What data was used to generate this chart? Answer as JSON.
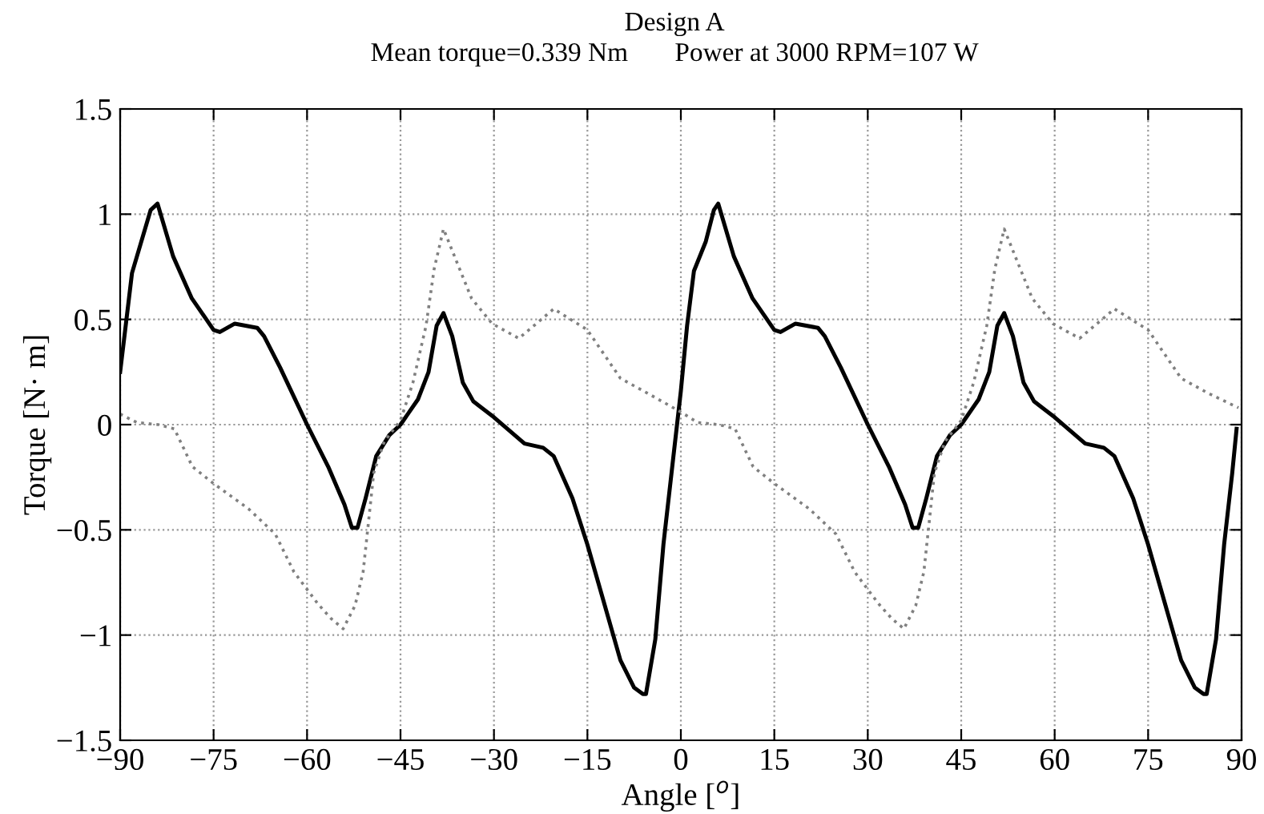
{
  "chart_data": {
    "type": "line",
    "title": "Design A",
    "subtitle": "Mean torque=0.339 Nm       Power at 3000 RPM=107 W",
    "xlabel": "Angle [$^{o}$]",
    "ylabel": "Torque [N· m]",
    "xlim": [
      -90,
      90
    ],
    "xticks": [
      {
        "value": -90,
        "label": "−90"
      },
      {
        "value": -75,
        "label": "−75"
      },
      {
        "value": -60,
        "label": "−60"
      },
      {
        "value": -45,
        "label": "−45"
      },
      {
        "value": -30,
        "label": "−30"
      },
      {
        "value": -15,
        "label": "−15"
      },
      0,
      15,
      30,
      45,
      60,
      75,
      90
    ],
    "ylim": [
      -1.5,
      1.5
    ],
    "yticks": [
      {
        "value": -1.5,
        "label": "−1.5"
      },
      {
        "value": -1,
        "label": "−1"
      },
      {
        "value": -0.5,
        "label": "−0.5"
      },
      0,
      0.5,
      1,
      1.5
    ],
    "grid": true,
    "marker": "none",
    "series": [
      {
        "color": "#000000",
        "line_style": "solid",
        "x": [
          -90,
          -88.1,
          -85.1,
          -84,
          -81.5,
          -78.5,
          -75,
          -74,
          -71.6,
          -68,
          -66.9,
          -64.3,
          -60,
          -56.6,
          -54,
          -52.8,
          -51.9,
          -50.6,
          -48.9,
          -46.8,
          -45,
          -42.2,
          -40.5,
          -39.2,
          -38.1,
          -36.7,
          -35,
          -33.3,
          -30,
          -25.1,
          -22.1,
          -20.4,
          -17.4,
          -15,
          -12.3,
          -9.7,
          -7.5,
          -6.1,
          -5.6,
          -4.1,
          -2.8,
          -1.5,
          0,
          1,
          2.1,
          4,
          5.3,
          6,
          8.5,
          11.5,
          15,
          16,
          18.4,
          22,
          23.1,
          25.7,
          30,
          33.4,
          36,
          37.2,
          38.1,
          39.4,
          41.1,
          43.2,
          45,
          47.8,
          49.5,
          50.8,
          51.9,
          53.3,
          55,
          56.7,
          60,
          64.9,
          67.9,
          69.6,
          72.6,
          75,
          77.7,
          80.3,
          82.5,
          83.9,
          84.4,
          85.9,
          87.2,
          88.5,
          89.2
        ],
        "values": [
          0.25,
          0.72,
          1.02,
          1.05,
          0.8,
          0.6,
          0.45,
          0.44,
          0.48,
          0.46,
          0.42,
          0.27,
          0,
          -0.2,
          -0.38,
          -0.49,
          -0.49,
          -0.35,
          -0.15,
          -0.05,
          0,
          0.12,
          0.25,
          0.47,
          0.53,
          0.42,
          0.2,
          0.11,
          0.035,
          -0.09,
          -0.11,
          -0.15,
          -0.35,
          -0.57,
          -0.85,
          -1.12,
          -1.25,
          -1.28,
          -1.28,
          -1.02,
          -0.57,
          -0.23,
          0.16,
          0.47,
          0.73,
          0.87,
          1.02,
          1.05,
          0.8,
          0.6,
          0.45,
          0.44,
          0.48,
          0.46,
          0.42,
          0.27,
          0,
          -0.2,
          -0.38,
          -0.49,
          -0.49,
          -0.35,
          -0.15,
          -0.05,
          0,
          0.12,
          0.25,
          0.47,
          0.53,
          0.42,
          0.2,
          0.11,
          0.035,
          -0.09,
          -0.11,
          -0.15,
          -0.35,
          -0.57,
          -0.85,
          -1.12,
          -1.25,
          -1.28,
          -1.28,
          -1.02,
          -0.57,
          -0.23,
          -0.02
        ]
      },
      {
        "color": "#808080",
        "line_style": "dotted",
        "x": [
          -90,
          -87.3,
          -83.9,
          -81.3,
          -78.4,
          -75,
          -69.4,
          -65.1,
          -62.1,
          -58.3,
          -56.2,
          -54.2,
          -52.3,
          -51,
          -50.2,
          -49.3,
          -47.6,
          -45,
          -43,
          -40.9,
          -39.6,
          -38.1,
          -36.2,
          -33.6,
          -30.3,
          -26,
          -20.4,
          -15,
          -9.7,
          -5.4,
          0,
          2.7,
          6.1,
          8.7,
          11.6,
          15,
          20.6,
          24.9,
          27.9,
          31.7,
          33.8,
          35.8,
          37.7,
          39,
          39.8,
          40.7,
          42.4,
          45,
          47,
          49.1,
          50.4,
          51.9,
          53.8,
          56.4,
          59.7,
          64,
          69.6,
          75,
          80.3,
          84.6,
          89.5
        ],
        "values": [
          0.05,
          0.01,
          0,
          -0.02,
          -0.2,
          -0.28,
          -0.4,
          -0.52,
          -0.7,
          -0.85,
          -0.92,
          -0.97,
          -0.86,
          -0.7,
          -0.48,
          -0.23,
          -0.08,
          0.02,
          0.2,
          0.47,
          0.74,
          0.93,
          0.79,
          0.6,
          0.48,
          0.41,
          0.55,
          0.45,
          0.22,
          0.15,
          0.06,
          0.01,
          0,
          -0.02,
          -0.2,
          -0.28,
          -0.4,
          -0.52,
          -0.7,
          -0.85,
          -0.92,
          -0.97,
          -0.86,
          -0.7,
          -0.48,
          -0.23,
          -0.08,
          0.02,
          0.2,
          0.47,
          0.74,
          0.93,
          0.79,
          0.6,
          0.48,
          0.41,
          0.55,
          0.45,
          0.22,
          0.15,
          0.08
        ]
      }
    ]
  }
}
